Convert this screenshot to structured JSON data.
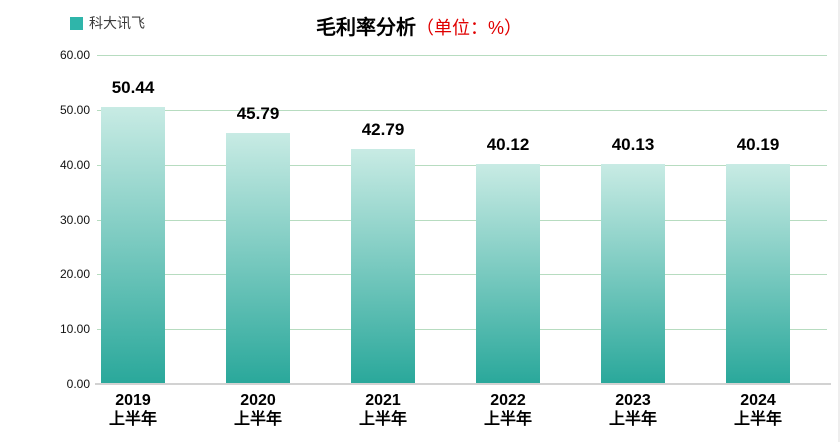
{
  "legend": {
    "label": "科大讯飞",
    "swatch_color": "#2fb5aa"
  },
  "title": {
    "main": "毛利率分析",
    "unit": "（单位：%）",
    "unit_color": "#e00000"
  },
  "chart_data": {
    "type": "bar",
    "title": "毛利率分析（单位：%）",
    "legend_position": "top-left",
    "categories": [
      "2019 上半年",
      "2020 上半年",
      "2021 上半年",
      "2022 上半年",
      "2023 上半年",
      "2024 上半年"
    ],
    "series": [
      {
        "name": "科大讯飞",
        "values": [
          50.44,
          45.79,
          42.79,
          40.12,
          40.13,
          40.19
        ]
      }
    ],
    "data_labels": [
      "50.44",
      "45.79",
      "42.79",
      "40.12",
      "40.13",
      "40.19"
    ],
    "y_ticks": [
      "60.00",
      "50.00",
      "40.00",
      "30.00",
      "20.00",
      "10.00",
      "0.00"
    ],
    "ylim": [
      0,
      60
    ],
    "grid": "horizontal",
    "gridline_color": "#b7dcc0",
    "axis_line_color": "#d2d2d2",
    "bar_gradient_top": "#c8ebe4",
    "bar_gradient_bottom": "#2aa89b"
  }
}
